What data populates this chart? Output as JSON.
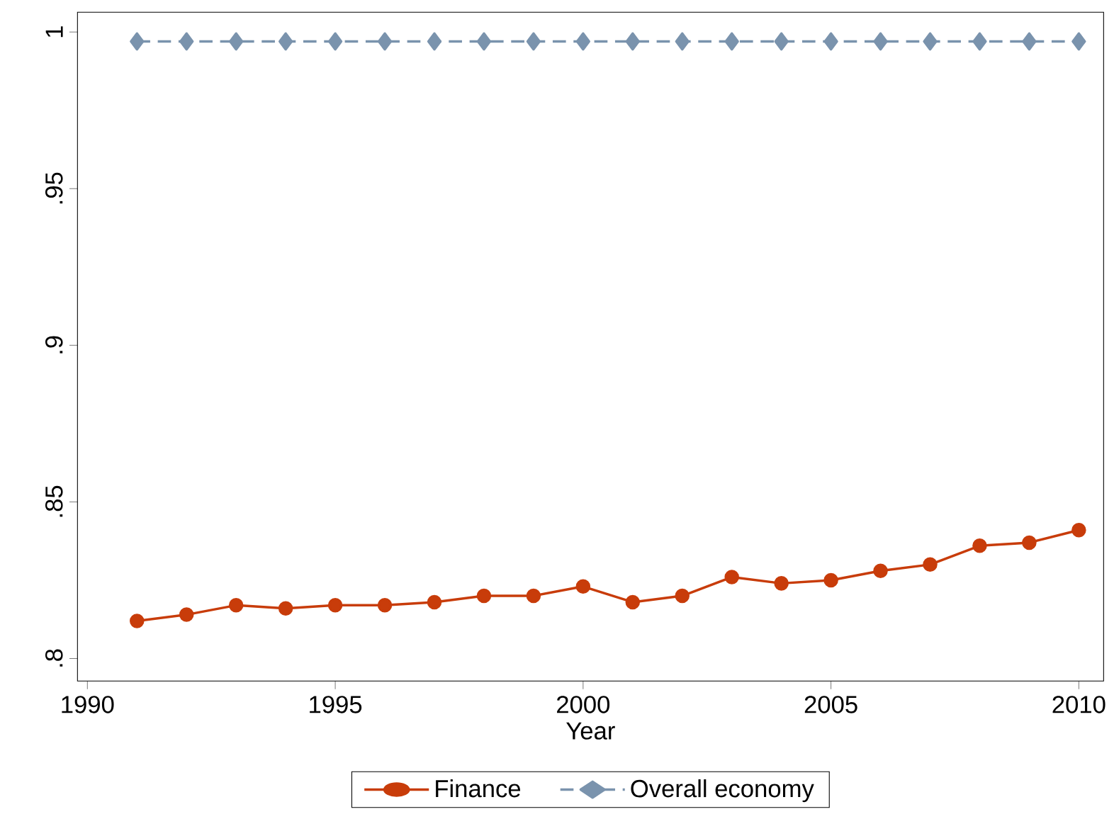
{
  "chart_data": {
    "type": "line",
    "xlabel": "Year",
    "x": [
      1991,
      1992,
      1993,
      1994,
      1995,
      1996,
      1997,
      1998,
      1999,
      2000,
      2001,
      2002,
      2003,
      2004,
      2005,
      2006,
      2007,
      2008,
      2009,
      2010
    ],
    "series": [
      {
        "name": "Finance",
        "color": "#c83c0a",
        "marker": "circle",
        "line_style": "solid",
        "values": [
          0.812,
          0.814,
          0.817,
          0.816,
          0.817,
          0.817,
          0.818,
          0.82,
          0.82,
          0.823,
          0.818,
          0.82,
          0.826,
          0.824,
          0.825,
          0.828,
          0.83,
          0.836,
          0.837,
          0.841
        ]
      },
      {
        "name": "Overall economy",
        "color": "#7a93ad",
        "marker": "diamond",
        "line_style": "dashed",
        "values": [
          0.997,
          0.997,
          0.997,
          0.997,
          0.997,
          0.997,
          0.997,
          0.997,
          0.997,
          0.997,
          0.997,
          0.997,
          0.997,
          0.997,
          0.997,
          0.997,
          0.997,
          0.997,
          0.997,
          0.997
        ]
      }
    ],
    "xlim": [
      1989.8,
      2010.5
    ],
    "ylim": [
      0.7928,
      1.0063
    ],
    "xticks": [
      1990,
      1995,
      2000,
      2005,
      2010
    ],
    "yticks": [
      {
        "value": 0.8,
        "label": ".8"
      },
      {
        "value": 0.85,
        "label": ".85"
      },
      {
        "value": 0.9,
        "label": ".9"
      },
      {
        "value": 0.95,
        "label": ".95"
      },
      {
        "value": 1,
        "label": "1"
      }
    ],
    "grid": false,
    "legend": "bottom"
  }
}
